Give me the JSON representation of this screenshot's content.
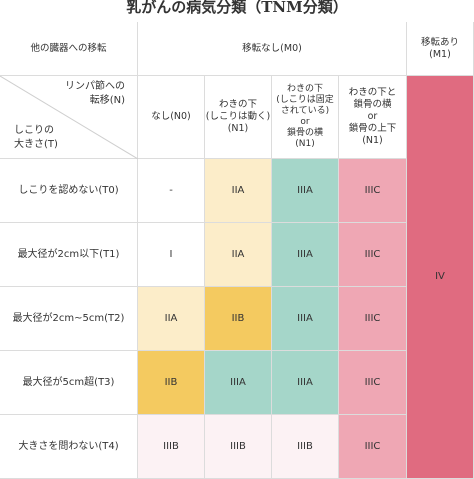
{
  "title": "乳がんの病気分類（TNM分類）",
  "colors": {
    "cream": "#fcedc9",
    "teal": "#a5d6c9",
    "pink": "#efa7b4",
    "mustard": "#f4ca60",
    "light_pink": "#fcf2f4",
    "red": "#e06b80",
    "white": "#ffffff",
    "grid": "#dcdcdc"
  },
  "header": {
    "corner_top": "他の臓器への移転",
    "m0_label": "移転なし(M0)",
    "m1_label": "移転あり\n(M1)",
    "diag_top": "リンパ節への\n転移(N)",
    "diag_bottom": "しこりの\n大きさ(T)",
    "n0": "なし(N0)",
    "n1a": "わきの下\n(しこりは動く)\n(N1)",
    "n1b": "わきの下\n(しこりは固定\nされている)\nor\n鎖骨の横\n(N1)",
    "n1c": "わきの下と\n鎖骨の横\nor\n鎖骨の上下\n(N1)"
  },
  "rows": [
    {
      "label": "しこりを認めない(T0)",
      "values": [
        "-",
        "IIA",
        "IIIA",
        "IIIC"
      ]
    },
    {
      "label": "最大径が2cm以下(T1)",
      "values": [
        "I",
        "IIA",
        "IIIA",
        "IIIC"
      ]
    },
    {
      "label": "最大径が2cm~5cm(T2)",
      "values": [
        "IIA",
        "IIB",
        "IIIA",
        "IIIC"
      ]
    },
    {
      "label": "最大径が5cm超(T3)",
      "values": [
        "IIB",
        "IIIA",
        "IIIA",
        "IIIC"
      ]
    },
    {
      "label": "大きさを問わない(T4)",
      "values": [
        "IIIB",
        "IIIB",
        "IIIB",
        "IIIC"
      ]
    }
  ],
  "m1_value": "IV"
}
